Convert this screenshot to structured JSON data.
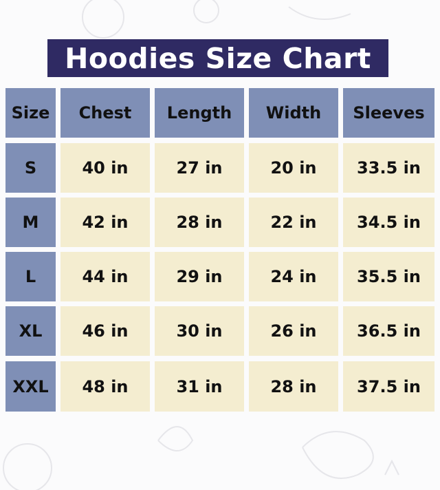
{
  "title": "Hoodies Size Chart",
  "colors": {
    "title_bg": "#2f2a63",
    "header_bg": "#7f8fb6",
    "cell_bg": "#f4edd0"
  },
  "chart_data": {
    "type": "table",
    "title": "Hoodies Size Chart",
    "columns": [
      "Size",
      "Chest",
      "Length",
      "Width",
      "Sleeves"
    ],
    "rows": [
      [
        "S",
        "40 in",
        "27 in",
        "20 in",
        "33.5 in"
      ],
      [
        "M",
        "42 in",
        "28 in",
        "22 in",
        "34.5 in"
      ],
      [
        "L",
        "44 in",
        "29 in",
        "24 in",
        "35.5 in"
      ],
      [
        "XL",
        "46 in",
        "30 in",
        "26 in",
        "36.5 in"
      ],
      [
        "XXL",
        "48 in",
        "31 in",
        "28 in",
        "37.5 in"
      ]
    ]
  }
}
